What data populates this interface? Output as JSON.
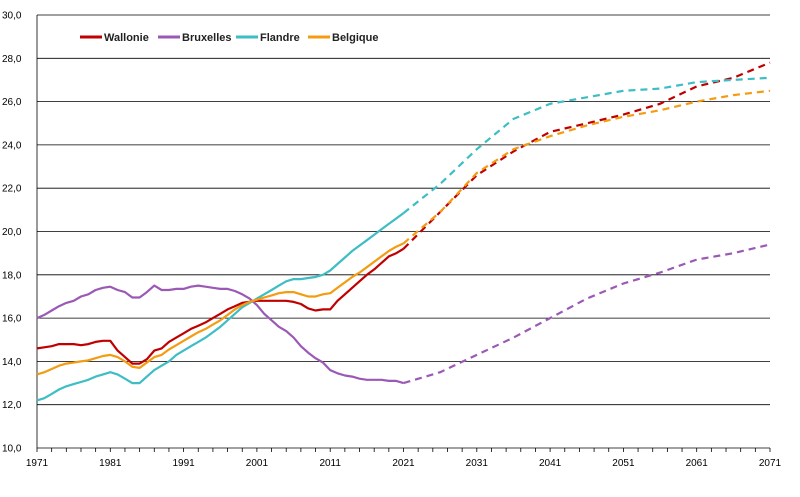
{
  "chart_data": {
    "type": "line",
    "title": "",
    "xlabel": "",
    "ylabel": "",
    "xlim": [
      1971,
      2071
    ],
    "ylim": [
      10,
      30
    ],
    "grid": "horizontal",
    "legend_placement": "top-left",
    "x_ticks": [
      1971,
      1981,
      1991,
      2001,
      2011,
      2021,
      2031,
      2041,
      2051,
      2061,
      2071
    ],
    "y_ticks": [
      "10,0",
      "12,0",
      "14,0",
      "16,0",
      "18,0",
      "20,0",
      "22,0",
      "24,0",
      "26,0",
      "28,0",
      "30,0"
    ],
    "series": [
      {
        "name": "Wallonie",
        "color": "#c00000",
        "observed": [
          [
            1971,
            14.6
          ],
          [
            1972,
            14.65
          ],
          [
            1973,
            14.7
          ],
          [
            1974,
            14.8
          ],
          [
            1975,
            14.8
          ],
          [
            1976,
            14.8
          ],
          [
            1977,
            14.75
          ],
          [
            1978,
            14.8
          ],
          [
            1979,
            14.9
          ],
          [
            1980,
            14.95
          ],
          [
            1981,
            14.95
          ],
          [
            1982,
            14.5
          ],
          [
            1983,
            14.2
          ],
          [
            1984,
            13.9
          ],
          [
            1985,
            13.9
          ],
          [
            1986,
            14.1
          ],
          [
            1987,
            14.5
          ],
          [
            1988,
            14.6
          ],
          [
            1989,
            14.9
          ],
          [
            1990,
            15.1
          ],
          [
            1991,
            15.3
          ],
          [
            1992,
            15.5
          ],
          [
            1993,
            15.65
          ],
          [
            1994,
            15.8
          ],
          [
            1995,
            16.0
          ],
          [
            1996,
            16.2
          ],
          [
            1997,
            16.4
          ],
          [
            1998,
            16.55
          ],
          [
            1999,
            16.7
          ],
          [
            2000,
            16.75
          ],
          [
            2001,
            16.8
          ],
          [
            2002,
            16.8
          ],
          [
            2003,
            16.8
          ],
          [
            2004,
            16.8
          ],
          [
            2005,
            16.8
          ],
          [
            2006,
            16.75
          ],
          [
            2007,
            16.65
          ],
          [
            2008,
            16.45
          ],
          [
            2009,
            16.35
          ],
          [
            2010,
            16.4
          ],
          [
            2011,
            16.4
          ],
          [
            2012,
            16.8
          ],
          [
            2013,
            17.1
          ],
          [
            2014,
            17.4
          ],
          [
            2015,
            17.7
          ],
          [
            2016,
            18.0
          ],
          [
            2017,
            18.25
          ],
          [
            2018,
            18.55
          ],
          [
            2019,
            18.85
          ],
          [
            2020,
            19.0
          ],
          [
            2021,
            19.2
          ]
        ],
        "projected": [
          [
            2021,
            19.2
          ],
          [
            2026,
            20.9
          ],
          [
            2031,
            22.6
          ],
          [
            2036,
            23.7
          ],
          [
            2041,
            24.6
          ],
          [
            2046,
            25.0
          ],
          [
            2051,
            25.4
          ],
          [
            2056,
            25.9
          ],
          [
            2061,
            26.7
          ],
          [
            2066,
            27.1
          ],
          [
            2071,
            27.8
          ]
        ]
      },
      {
        "name": "Bruxelles",
        "color": "#9b59b6",
        "observed": [
          [
            1971,
            16.0
          ],
          [
            1972,
            16.15
          ],
          [
            1973,
            16.35
          ],
          [
            1974,
            16.55
          ],
          [
            1975,
            16.7
          ],
          [
            1976,
            16.8
          ],
          [
            1977,
            17.0
          ],
          [
            1978,
            17.1
          ],
          [
            1979,
            17.3
          ],
          [
            1980,
            17.4
          ],
          [
            1981,
            17.45
          ],
          [
            1982,
            17.3
          ],
          [
            1983,
            17.2
          ],
          [
            1984,
            16.95
          ],
          [
            1985,
            16.95
          ],
          [
            1986,
            17.2
          ],
          [
            1987,
            17.5
          ],
          [
            1988,
            17.3
          ],
          [
            1989,
            17.3
          ],
          [
            1990,
            17.35
          ],
          [
            1991,
            17.35
          ],
          [
            1992,
            17.45
          ],
          [
            1993,
            17.5
          ],
          [
            1994,
            17.45
          ],
          [
            1995,
            17.4
          ],
          [
            1996,
            17.35
          ],
          [
            1997,
            17.35
          ],
          [
            1998,
            17.25
          ],
          [
            1999,
            17.1
          ],
          [
            2000,
            16.9
          ],
          [
            2001,
            16.6
          ],
          [
            2002,
            16.2
          ],
          [
            2003,
            15.9
          ],
          [
            2004,
            15.6
          ],
          [
            2005,
            15.4
          ],
          [
            2006,
            15.1
          ],
          [
            2007,
            14.7
          ],
          [
            2008,
            14.4
          ],
          [
            2009,
            14.15
          ],
          [
            2010,
            13.95
          ],
          [
            2011,
            13.6
          ],
          [
            2012,
            13.45
          ],
          [
            2013,
            13.35
          ],
          [
            2014,
            13.3
          ],
          [
            2015,
            13.2
          ],
          [
            2016,
            13.15
          ],
          [
            2017,
            13.15
          ],
          [
            2018,
            13.15
          ],
          [
            2019,
            13.1
          ],
          [
            2020,
            13.1
          ],
          [
            2021,
            13.0
          ]
        ],
        "projected": [
          [
            2021,
            13.0
          ],
          [
            2026,
            13.5
          ],
          [
            2031,
            14.3
          ],
          [
            2036,
            15.1
          ],
          [
            2041,
            16.0
          ],
          [
            2046,
            16.9
          ],
          [
            2051,
            17.6
          ],
          [
            2056,
            18.1
          ],
          [
            2061,
            18.7
          ],
          [
            2066,
            19.0
          ],
          [
            2071,
            19.4
          ]
        ]
      },
      {
        "name": "Flandre",
        "color": "#3dbdc4",
        "observed": [
          [
            1971,
            12.2
          ],
          [
            1972,
            12.3
          ],
          [
            1973,
            12.5
          ],
          [
            1974,
            12.7
          ],
          [
            1975,
            12.85
          ],
          [
            1976,
            12.95
          ],
          [
            1977,
            13.05
          ],
          [
            1978,
            13.15
          ],
          [
            1979,
            13.3
          ],
          [
            1980,
            13.4
          ],
          [
            1981,
            13.5
          ],
          [
            1982,
            13.4
          ],
          [
            1983,
            13.2
          ],
          [
            1984,
            13.0
          ],
          [
            1985,
            13.0
          ],
          [
            1986,
            13.3
          ],
          [
            1987,
            13.6
          ],
          [
            1988,
            13.8
          ],
          [
            1989,
            14.0
          ],
          [
            1990,
            14.3
          ],
          [
            1991,
            14.5
          ],
          [
            1992,
            14.7
          ],
          [
            1993,
            14.9
          ],
          [
            1994,
            15.1
          ],
          [
            1995,
            15.35
          ],
          [
            1996,
            15.6
          ],
          [
            1997,
            15.9
          ],
          [
            1998,
            16.2
          ],
          [
            1999,
            16.5
          ],
          [
            2000,
            16.7
          ],
          [
            2001,
            16.9
          ],
          [
            2002,
            17.1
          ],
          [
            2003,
            17.3
          ],
          [
            2004,
            17.5
          ],
          [
            2005,
            17.7
          ],
          [
            2006,
            17.8
          ],
          [
            2007,
            17.8
          ],
          [
            2008,
            17.85
          ],
          [
            2009,
            17.9
          ],
          [
            2010,
            18.0
          ],
          [
            2011,
            18.2
          ],
          [
            2012,
            18.5
          ],
          [
            2013,
            18.8
          ],
          [
            2014,
            19.1
          ],
          [
            2015,
            19.35
          ],
          [
            2016,
            19.6
          ],
          [
            2017,
            19.85
          ],
          [
            2018,
            20.1
          ],
          [
            2019,
            20.35
          ],
          [
            2020,
            20.6
          ],
          [
            2021,
            20.85
          ]
        ],
        "projected": [
          [
            2021,
            20.85
          ],
          [
            2026,
            22.2
          ],
          [
            2031,
            23.8
          ],
          [
            2036,
            25.2
          ],
          [
            2041,
            25.9
          ],
          [
            2046,
            26.2
          ],
          [
            2051,
            26.5
          ],
          [
            2056,
            26.6
          ],
          [
            2061,
            26.9
          ],
          [
            2066,
            27.0
          ],
          [
            2071,
            27.1
          ]
        ]
      },
      {
        "name": "Belgique",
        "color": "#f39c12",
        "observed": [
          [
            1971,
            13.4
          ],
          [
            1972,
            13.5
          ],
          [
            1973,
            13.65
          ],
          [
            1974,
            13.8
          ],
          [
            1975,
            13.9
          ],
          [
            1976,
            13.95
          ],
          [
            1977,
            14.0
          ],
          [
            1978,
            14.05
          ],
          [
            1979,
            14.15
          ],
          [
            1980,
            14.25
          ],
          [
            1981,
            14.3
          ],
          [
            1982,
            14.2
          ],
          [
            1983,
            14.0
          ],
          [
            1984,
            13.75
          ],
          [
            1985,
            13.7
          ],
          [
            1986,
            13.95
          ],
          [
            1987,
            14.2
          ],
          [
            1988,
            14.3
          ],
          [
            1989,
            14.55
          ],
          [
            1990,
            14.75
          ],
          [
            1991,
            14.95
          ],
          [
            1992,
            15.15
          ],
          [
            1993,
            15.35
          ],
          [
            1994,
            15.5
          ],
          [
            1995,
            15.7
          ],
          [
            1996,
            15.9
          ],
          [
            1997,
            16.15
          ],
          [
            1998,
            16.4
          ],
          [
            1999,
            16.6
          ],
          [
            2000,
            16.75
          ],
          [
            2001,
            16.85
          ],
          [
            2002,
            16.95
          ],
          [
            2003,
            17.05
          ],
          [
            2004,
            17.15
          ],
          [
            2005,
            17.2
          ],
          [
            2006,
            17.2
          ],
          [
            2007,
            17.1
          ],
          [
            2008,
            17.0
          ],
          [
            2009,
            17.0
          ],
          [
            2010,
            17.1
          ],
          [
            2011,
            17.15
          ],
          [
            2012,
            17.4
          ],
          [
            2013,
            17.65
          ],
          [
            2014,
            17.9
          ],
          [
            2015,
            18.1
          ],
          [
            2016,
            18.35
          ],
          [
            2017,
            18.6
          ],
          [
            2018,
            18.85
          ],
          [
            2019,
            19.1
          ],
          [
            2020,
            19.3
          ],
          [
            2021,
            19.45
          ]
        ],
        "projected": [
          [
            2021,
            19.45
          ],
          [
            2026,
            20.9
          ],
          [
            2031,
            22.7
          ],
          [
            2036,
            23.8
          ],
          [
            2041,
            24.4
          ],
          [
            2046,
            24.9
          ],
          [
            2051,
            25.3
          ],
          [
            2056,
            25.6
          ],
          [
            2061,
            26.0
          ],
          [
            2066,
            26.3
          ],
          [
            2071,
            26.5
          ]
        ]
      }
    ]
  }
}
